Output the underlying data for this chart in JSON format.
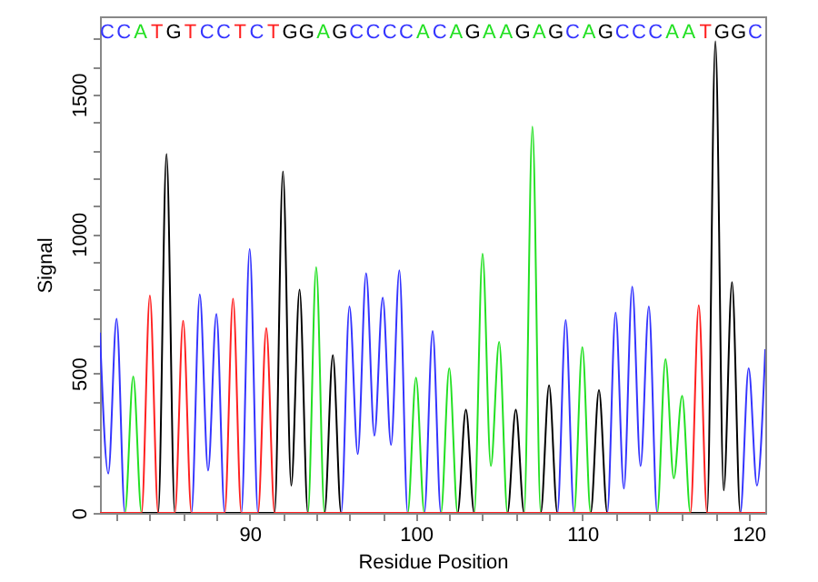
{
  "chart_data": {
    "type": "line",
    "xlabel": "Residue Position",
    "ylabel": "Signal",
    "xlim": [
      81,
      121
    ],
    "ylim": [
      0,
      1780
    ],
    "xticks": [
      {
        "value": 82,
        "label": null
      },
      {
        "value": 84,
        "label": null
      },
      {
        "value": 86,
        "label": null
      },
      {
        "value": 88,
        "label": null
      },
      90,
      {
        "value": 92,
        "label": null
      },
      {
        "value": 94,
        "label": null
      },
      {
        "value": 96,
        "label": null
      },
      {
        "value": 98,
        "label": null
      },
      100,
      {
        "value": 102,
        "label": null
      },
      {
        "value": 104,
        "label": null
      },
      {
        "value": 106,
        "label": null
      },
      {
        "value": 108,
        "label": null
      },
      110,
      {
        "value": 112,
        "label": null
      },
      {
        "value": 114,
        "label": null
      },
      {
        "value": 116,
        "label": null
      },
      {
        "value": 118,
        "label": null
      },
      120
    ],
    "yticks": [
      0,
      {
        "value": 100,
        "label": null
      },
      {
        "value": 200,
        "label": null
      },
      {
        "value": 300,
        "label": null
      },
      {
        "value": 400,
        "label": null
      },
      500,
      {
        "value": 600,
        "label": null
      },
      {
        "value": 700,
        "label": null
      },
      {
        "value": 800,
        "label": null
      },
      {
        "value": 900,
        "label": null
      },
      1000,
      {
        "value": 1100,
        "label": null
      },
      {
        "value": 1200,
        "label": null
      },
      {
        "value": 1300,
        "label": null
      },
      {
        "value": 1400,
        "label": null
      },
      1500,
      {
        "value": 1600,
        "label": null
      },
      {
        "value": 1700,
        "label": null
      }
    ],
    "annotations": [
      "CCATGTCCTCTGGAGCCCCACAGAAGAGCAGCCCAATGGC"
    ],
    "grid": false,
    "marker": "none",
    "line_style": "solid",
    "series": [
      {
        "color": "#3434ff",
        "x": [
          81,
          81.5,
          82,
          82.5,
          86.5,
          87,
          87.5,
          88,
          88.5,
          89.5,
          90,
          90.5,
          95.5,
          96,
          96.5,
          97,
          97.5,
          98,
          98.5,
          99,
          99.5,
          100.5,
          101,
          101.5,
          108.5,
          109,
          109.5,
          111.5,
          112,
          112.5,
          113,
          113.5,
          114,
          114.5,
          119.5,
          120,
          120.5,
          121
        ],
        "values": [
          646,
          141,
          696,
          0,
          0,
          783,
          152,
          713,
          0,
          0,
          946,
          0,
          0,
          740,
          211,
          859,
          277,
          772,
          244,
          870,
          0,
          0,
          652,
          0,
          0,
          691,
          0,
          0,
          718,
          87,
          811,
          168,
          740,
          0,
          0,
          518,
          98,
          587
        ]
      },
      {
        "color": "#22e022",
        "x": [
          81,
          82.5,
          83,
          83.5,
          93.5,
          94,
          94.5,
          99.5,
          100,
          100.5,
          101.5,
          102,
          102.5,
          103.5,
          104,
          104.5,
          105,
          105.5,
          106.5,
          107,
          107.5,
          109.5,
          110,
          110.5,
          114.5,
          115,
          115.5,
          116,
          116.5,
          121
        ],
        "values": [
          0,
          0,
          489,
          0,
          0,
          881,
          0,
          0,
          485,
          0,
          0,
          518,
          0,
          0,
          929,
          168,
          613,
          0,
          0,
          1385,
          0,
          0,
          594,
          0,
          0,
          551,
          124,
          420,
          0,
          0
        ]
      },
      {
        "color": "#000000",
        "x": [
          81,
          84.5,
          85,
          85.5,
          91.5,
          92,
          92.5,
          93,
          93.5,
          94.5,
          95,
          95.5,
          102.5,
          103,
          103.5,
          105.5,
          106,
          106.5,
          107.5,
          108,
          108.5,
          110.5,
          111,
          111.5,
          117.5,
          118,
          118.5,
          119,
          119.5,
          121
        ],
        "values": [
          0,
          0,
          1287,
          0,
          0,
          1224,
          98,
          800,
          0,
          0,
          566,
          0,
          0,
          370,
          0,
          0,
          370,
          0,
          0,
          457,
          0,
          0,
          440,
          0,
          0,
          1690,
          81,
          827,
          0,
          0
        ]
      },
      {
        "color": "#ff2020",
        "x": [
          81,
          83.5,
          84,
          84.5,
          85.5,
          86,
          86.5,
          88.5,
          89,
          89.5,
          90.5,
          91,
          91.5,
          116.5,
          117,
          117.5,
          121
        ],
        "values": [
          0,
          0,
          779,
          0,
          0,
          689,
          0,
          0,
          768,
          0,
          0,
          663,
          0,
          0,
          744,
          0,
          0
        ]
      }
    ]
  }
}
